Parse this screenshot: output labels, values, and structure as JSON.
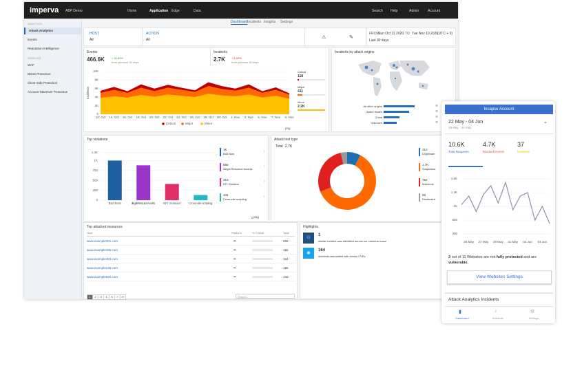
{
  "nav": {
    "logo": "imperva",
    "account": "ABP Demo",
    "items": [
      "Home",
      "Application",
      "Edge",
      "Data"
    ],
    "right": [
      "Search",
      "Help",
      "Admin",
      "Account"
    ]
  },
  "tabs": [
    "Dashboard",
    "Incidents",
    "Insights",
    "Settings"
  ],
  "sidebar": {
    "sections": [
      {
        "title": "ANALYTICS",
        "items": [
          "Attack Analytics",
          "Events",
          "Reputation Intelligence"
        ]
      },
      {
        "title": "SERVICES",
        "items": [
          "WAF",
          "DDoS Protection",
          "Client Side Protection",
          "Account TakeOver Protection"
        ]
      }
    ]
  },
  "filters": {
    "host_label": "HOST",
    "host_value": "All",
    "action_label": "ACTION",
    "action_value": "All",
    "from_label": "FROM",
    "from": "Sun Oct 11 2020",
    "to_label": "TO",
    "to": "Tue Nov 10 2020",
    "timezone": "(UTC + 0)",
    "range": "Last 30 days"
  },
  "events": {
    "title": "Events",
    "value": "466.6K",
    "change": "+ 30.89%",
    "note": "from previous 30 days"
  },
  "incidents": {
    "title": "Incidents",
    "value": "2.7K",
    "change": "↑ 5.49%",
    "note": "from previous 30 days",
    "severity": [
      {
        "name": "Critical",
        "value": 118,
        "color": "#c00000"
      },
      {
        "name": "Major",
        "value": 411,
        "color": "#ff6a00"
      },
      {
        "name": "Minor",
        "value": 2200,
        "label": "2.2K",
        "color": "#ffc000"
      }
    ]
  },
  "incident_chart": {
    "type": "area",
    "y_label": "Incidents",
    "export": "png",
    "categories": [
      "12. Oct",
      "14. Oct",
      "16. Oct",
      "18. Oct",
      "20. Oct",
      "22. Oct",
      "24. Oct",
      "26. Oct",
      "28. Oct",
      "30. Oct",
      "1. Nov",
      "3. Nov",
      "5. Nov",
      "7. Nov",
      "9. Nov"
    ],
    "series": [
      {
        "name": "Critical",
        "color": "#c00000",
        "values": [
          500,
          700,
          400,
          800,
          600,
          700,
          500,
          400,
          900,
          700,
          500,
          800,
          400,
          600,
          300
        ]
      },
      {
        "name": "Major",
        "color": "#ff6a00",
        "values": [
          1200,
          1500,
          1100,
          1700,
          1300,
          1600,
          1400,
          1200,
          1800,
          1500,
          1300,
          1600,
          1100,
          1400,
          1000
        ]
      },
      {
        "name": "Minor",
        "color": "#ffc000",
        "values": [
          3800,
          4200,
          3900,
          4500,
          4100,
          4600,
          4300,
          4000,
          4800,
          4400,
          4200,
          4600,
          3900,
          4300,
          3600
        ]
      }
    ],
    "ylim": [
      0,
      10000
    ],
    "yticks": [
      0,
      {
        "value": 2000,
        "label": "2K"
      },
      {
        "value": 4000,
        "label": "4K"
      },
      {
        "value": 6000,
        "label": "6K"
      },
      {
        "value": 8000,
        "label": "8K"
      },
      {
        "value": 10000,
        "label": "10K"
      }
    ]
  },
  "origins": {
    "title": "Incidents by attack origins",
    "color": "#1f6fb5",
    "categories": [
      "All other origins",
      "United States",
      "China",
      "Unknown"
    ],
    "values": [
      430,
      350,
      220,
      180
    ]
  },
  "violations": {
    "type": "bar",
    "title": "Top violations",
    "export": "png",
    "categories": [
      "Bad Bots",
      "Illegal Resource Access",
      "RFI Violation",
      "Cross-site scripting"
    ],
    "values": [
      1000,
      880,
      410,
      131
    ],
    "value_labels": [
      "1K",
      "880",
      "410",
      "131"
    ],
    "colors": [
      "#1f5fa0",
      "#9b34c9",
      "#e0306a",
      "#21b8c8"
    ],
    "ylim": [
      0,
      1250
    ],
    "yticks": [
      0,
      250,
      500,
      750,
      {
        "value": 1000,
        "label": "1K"
      },
      {
        "value": 1200,
        "label": "1.2K"
      }
    ]
  },
  "tools": {
    "type": "pie",
    "title": "Attack tool type",
    "total_label": "Total",
    "total": "2.7K",
    "categories": [
      "Legitimate",
      "Suspicious",
      "Malicious",
      "Distributed"
    ],
    "values": [
      210,
      1700,
      762,
      98
    ],
    "value_labels": [
      "210",
      "1.7K",
      "762",
      "98"
    ],
    "colors": [
      "#1f6fb5",
      "#ff6a00",
      "#e02020",
      "#9a9a9a"
    ]
  },
  "resources": {
    "title": "Top attacked resources",
    "headers": [
      "Host",
      "Platform",
      "% Critical",
      "Total"
    ],
    "rows": [
      [
        "www.example401.com",
        292
      ],
      [
        "www.example156.com",
        166
      ],
      [
        "www.example483.com",
        164
      ],
      [
        "www.example148.com",
        156
      ],
      [
        "www.example620.com",
        142
      ]
    ],
    "pages": [
      "1",
      "2",
      "3",
      "4",
      "5",
      "»",
      "»»"
    ],
    "search": "Search..."
  },
  "highlights": {
    "title": "Highlights",
    "items": [
      {
        "value": 1,
        "text": "similar incident was identified across our customer base"
      },
      {
        "value": 164,
        "text": "Incidents associated with known CVEs"
      }
    ]
  },
  "mobile": {
    "title": "Incapse Account",
    "date_range": "22 May - 04 Jun",
    "compare_range": "18 May - 22 May",
    "kpis": [
      {
        "value": "10.6K",
        "label": "Total Requests"
      },
      {
        "value": "4.7K",
        "label": "Blocked Events"
      },
      {
        "value": "37",
        "label": "Incidents"
      }
    ],
    "chart": {
      "type": "line",
      "color": "#8a93a8",
      "categories": [
        null,
        "25 May",
        null,
        "27 May",
        null,
        "29 May",
        null,
        "31 May",
        null,
        "02 Jun",
        null,
        "04 Jun",
        null
      ],
      "values": [
        1050,
        1300,
        850,
        1350,
        1600,
        1100,
        1700,
        900,
        1300,
        1400,
        600,
        1000,
        500
      ],
      "ylim": [
        100,
        1900
      ],
      "yticks": [
        200,
        600,
        {
          "value": 1000,
          "label": "1K"
        },
        {
          "value": 1400,
          "label": "1.4K"
        },
        {
          "value": 1800,
          "label": "1.8K"
        }
      ]
    },
    "warning": [
      "3",
      " out of 11 Websites are not ",
      "fully protected",
      " and are ",
      "vulnerable."
    ],
    "button": "View Websites Settings",
    "section": "Attack Analytics Incidents",
    "tabs": [
      "Dashboard",
      "Incidents",
      "Settings"
    ]
  }
}
